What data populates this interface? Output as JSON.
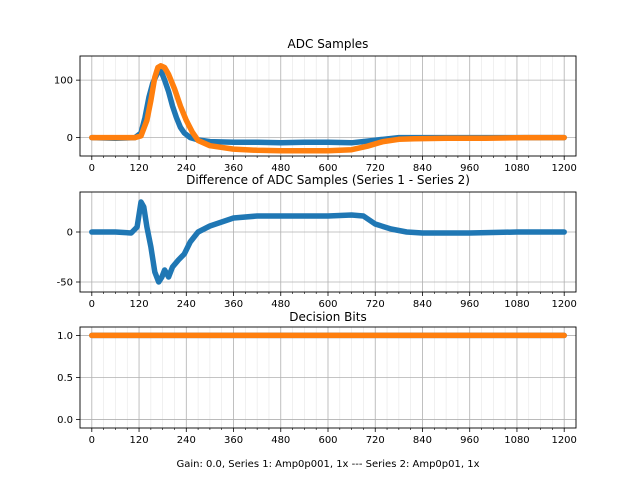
{
  "chart_data": [
    {
      "type": "scatter",
      "title": "ADC Samples",
      "xlabel": "",
      "ylabel": "",
      "xlim": [
        -30,
        1230
      ],
      "ylim": [
        -32,
        142
      ],
      "xticks": [
        0,
        120,
        240,
        360,
        480,
        600,
        720,
        840,
        960,
        1080,
        1200
      ],
      "yticks": [
        0,
        100
      ],
      "grid": true,
      "series": [
        {
          "color": "#1f77b4",
          "points": [
            [
              0,
              0
            ],
            [
              60,
              -1
            ],
            [
              110,
              0
            ],
            [
              125,
              8
            ],
            [
              135,
              35
            ],
            [
              145,
              70
            ],
            [
              155,
              95
            ],
            [
              165,
              110
            ],
            [
              172,
              118
            ],
            [
              178,
              112
            ],
            [
              185,
              100
            ],
            [
              195,
              80
            ],
            [
              205,
              55
            ],
            [
              215,
              35
            ],
            [
              225,
              18
            ],
            [
              235,
              8
            ],
            [
              250,
              0
            ],
            [
              270,
              -4
            ],
            [
              300,
              -7
            ],
            [
              360,
              -8
            ],
            [
              420,
              -8
            ],
            [
              480,
              -9
            ],
            [
              540,
              -8
            ],
            [
              600,
              -8
            ],
            [
              660,
              -9
            ],
            [
              700,
              -6
            ],
            [
              740,
              -3
            ],
            [
              780,
              0
            ],
            [
              840,
              0
            ],
            [
              960,
              0
            ],
            [
              1080,
              0
            ],
            [
              1200,
              0
            ]
          ]
        },
        {
          "color": "#ff7f0e",
          "points": [
            [
              0,
              0
            ],
            [
              80,
              0
            ],
            [
              110,
              0
            ],
            [
              125,
              3
            ],
            [
              140,
              30
            ],
            [
              150,
              65
            ],
            [
              160,
              105
            ],
            [
              168,
              122
            ],
            [
              175,
              125
            ],
            [
              185,
              122
            ],
            [
              195,
              110
            ],
            [
              210,
              85
            ],
            [
              225,
              55
            ],
            [
              240,
              30
            ],
            [
              255,
              10
            ],
            [
              270,
              -5
            ],
            [
              300,
              -14
            ],
            [
              360,
              -20
            ],
            [
              420,
              -22
            ],
            [
              480,
              -23
            ],
            [
              540,
              -23
            ],
            [
              600,
              -23
            ],
            [
              660,
              -21
            ],
            [
              700,
              -15
            ],
            [
              740,
              -7
            ],
            [
              780,
              -3
            ],
            [
              820,
              -2
            ],
            [
              900,
              -1
            ],
            [
              1000,
              -1
            ],
            [
              1100,
              0
            ],
            [
              1200,
              0
            ]
          ]
        }
      ]
    },
    {
      "type": "scatter",
      "title": "Difference of ADC Samples (Series 1 - Series 2)",
      "xlabel": "",
      "ylabel": "",
      "xlim": [
        -30,
        1230
      ],
      "ylim": [
        -60,
        40
      ],
      "xticks": [
        0,
        120,
        240,
        360,
        480,
        600,
        720,
        840,
        960,
        1080,
        1200
      ],
      "yticks": [
        -50,
        0
      ],
      "grid": true,
      "series": [
        {
          "color": "#1f77b4",
          "points": [
            [
              0,
              0
            ],
            [
              60,
              0
            ],
            [
              100,
              -1
            ],
            [
              115,
              5
            ],
            [
              125,
              30
            ],
            [
              132,
              25
            ],
            [
              140,
              5
            ],
            [
              150,
              -15
            ],
            [
              160,
              -40
            ],
            [
              170,
              -50
            ],
            [
              178,
              -45
            ],
            [
              185,
              -38
            ],
            [
              195,
              -45
            ],
            [
              205,
              -35
            ],
            [
              220,
              -28
            ],
            [
              235,
              -22
            ],
            [
              250,
              -10
            ],
            [
              270,
              0
            ],
            [
              300,
              6
            ],
            [
              330,
              10
            ],
            [
              360,
              14
            ],
            [
              420,
              16
            ],
            [
              480,
              16
            ],
            [
              540,
              16
            ],
            [
              600,
              16
            ],
            [
              660,
              17
            ],
            [
              690,
              16
            ],
            [
              720,
              8
            ],
            [
              760,
              3
            ],
            [
              800,
              0
            ],
            [
              840,
              -1
            ],
            [
              960,
              -1
            ],
            [
              1080,
              0
            ],
            [
              1200,
              0
            ]
          ]
        }
      ]
    },
    {
      "type": "scatter",
      "title": "Decision Bits",
      "xlabel": "Gain: 0.0, Series 1: Amp0p001, 1x --- Series 2: Amp0p01, 1x",
      "ylabel": "",
      "xlim": [
        -30,
        1230
      ],
      "ylim": [
        -0.1,
        1.1
      ],
      "xticks": [
        0,
        120,
        240,
        360,
        480,
        600,
        720,
        840,
        960,
        1080,
        1200
      ],
      "yticks": [
        0.0,
        0.5,
        1.0
      ],
      "ytick_labels": [
        "0.0",
        "0.5",
        "1.0"
      ],
      "grid": true,
      "series": [
        {
          "color": "#1f77b4",
          "points": [
            [
              0,
              1
            ],
            [
              1200,
              1
            ]
          ]
        },
        {
          "color": "#ff7f0e",
          "points": [
            [
              0,
              1
            ],
            [
              1200,
              1
            ]
          ]
        }
      ]
    }
  ]
}
